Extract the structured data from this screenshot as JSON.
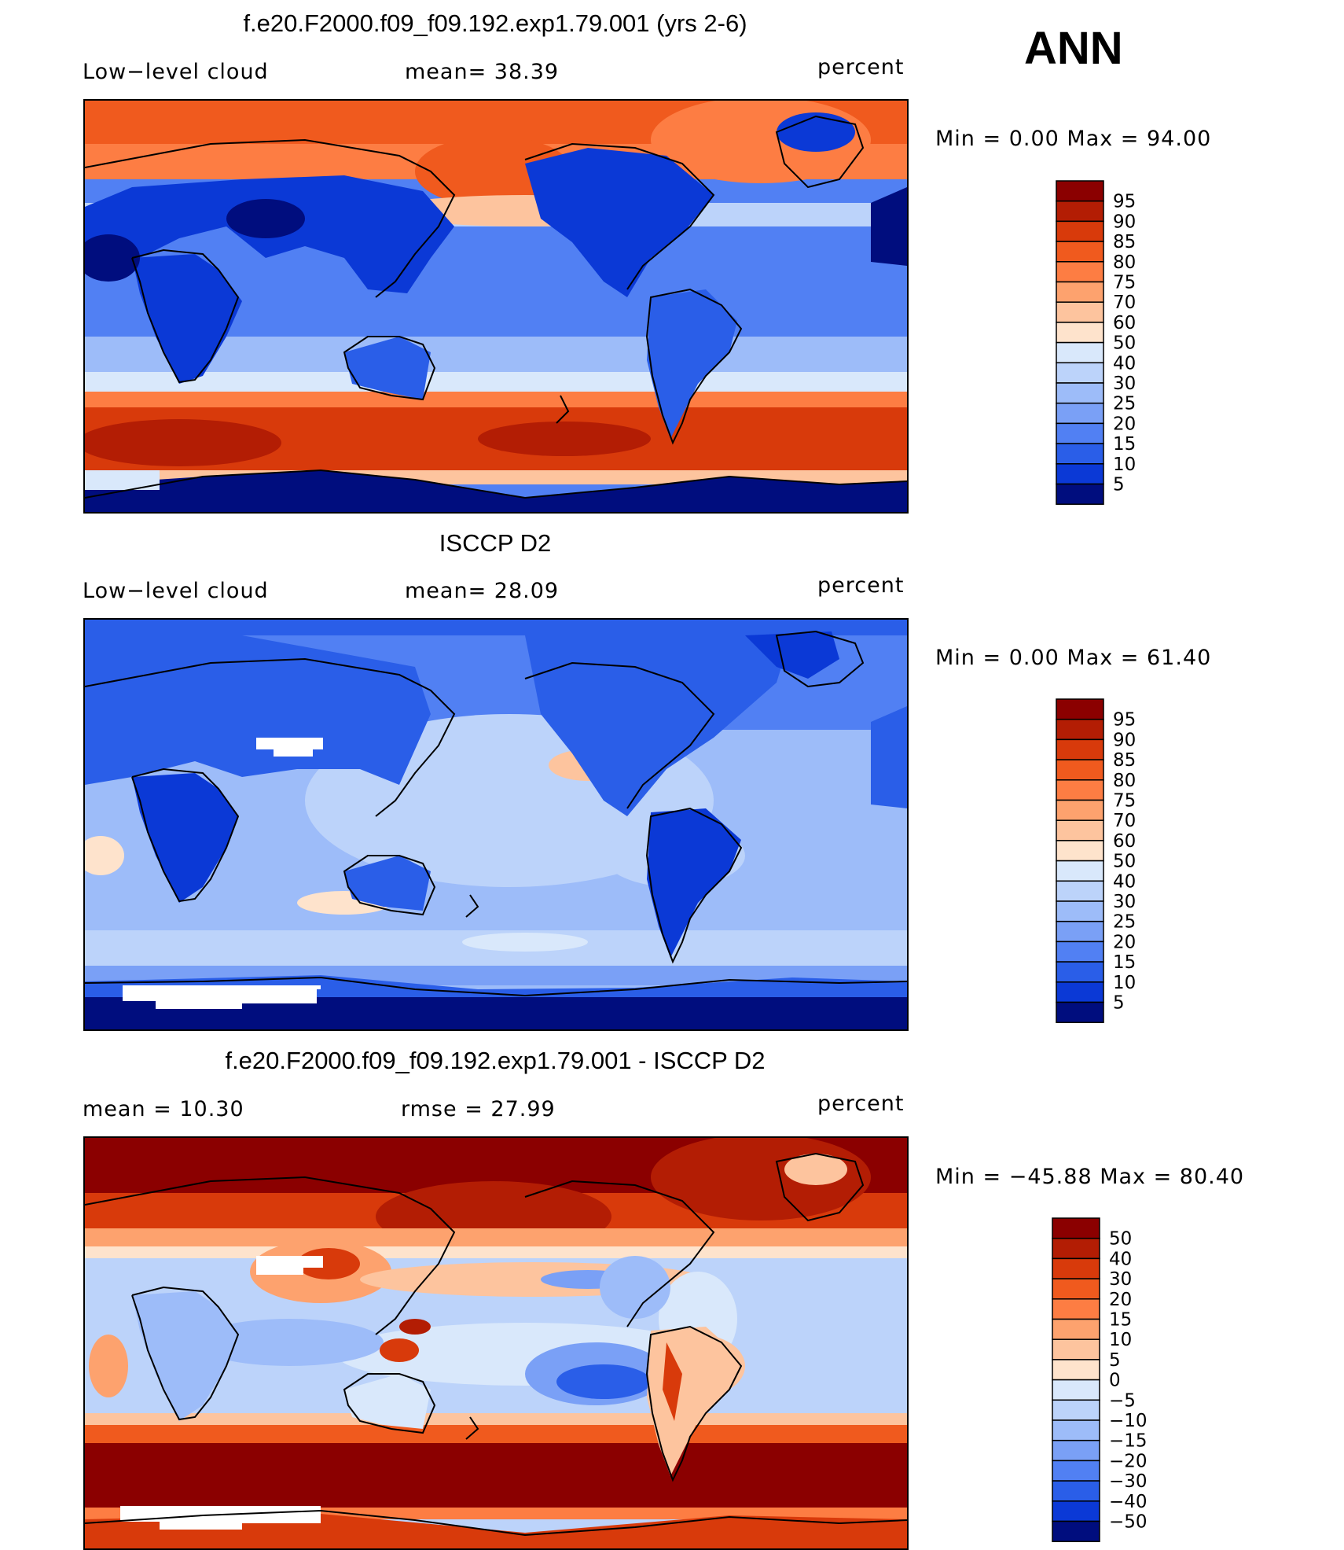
{
  "season": "ANN",
  "panels": [
    {
      "id": "model",
      "title": "f.e20.F2000.f09_f09.192.exp1.79.001 (yrs 2-6)",
      "left_label": "Low−level cloud",
      "middle_label": "mean=   38.39",
      "units": "percent",
      "minmax": "Min =    0.00 Max =   94.00",
      "colorbar": {
        "labels": [
          "95",
          "90",
          "85",
          "80",
          "75",
          "70",
          "60",
          "50",
          "40",
          "30",
          "25",
          "20",
          "15",
          "10",
          "5"
        ],
        "colors": [
          "#8b0000",
          "#b31d04",
          "#d83a0b",
          "#f05a1e",
          "#fd7d43",
          "#fda26e",
          "#fdc49e",
          "#fee3cc",
          "#d9e8fb",
          "#bcd3fa",
          "#9dbcf9",
          "#7aa0f6",
          "#5180f3",
          "#2a5ee8",
          "#0b39d6",
          "#000d7e"
        ]
      }
    },
    {
      "id": "obs",
      "title": "ISCCP D2",
      "left_label": "Low−level cloud",
      "middle_label": "mean=   28.09",
      "units": "percent",
      "minmax": "Min =    0.00 Max =   61.40",
      "colorbar": {
        "labels": [
          "95",
          "90",
          "85",
          "80",
          "75",
          "70",
          "60",
          "50",
          "40",
          "30",
          "25",
          "20",
          "15",
          "10",
          "5"
        ],
        "colors": [
          "#8b0000",
          "#b31d04",
          "#d83a0b",
          "#f05a1e",
          "#fd7d43",
          "#fda26e",
          "#fdc49e",
          "#fee3cc",
          "#d9e8fb",
          "#bcd3fa",
          "#9dbcf9",
          "#7aa0f6",
          "#5180f3",
          "#2a5ee8",
          "#0b39d6",
          "#000d7e"
        ]
      }
    },
    {
      "id": "diff",
      "title": "f.e20.F2000.f09_f09.192.exp1.79.001 - ISCCP D2",
      "left_label": "mean =    10.30",
      "middle_label": "rmse =    27.99",
      "units": "percent",
      "minmax": "Min = −45.88 Max =   80.40",
      "colorbar": {
        "labels": [
          "50",
          "40",
          "30",
          "20",
          "15",
          "10",
          "5",
          "0",
          "−5",
          "−10",
          "−15",
          "−20",
          "−30",
          "−40",
          "−50"
        ],
        "colors": [
          "#8b0000",
          "#b31d04",
          "#d83a0b",
          "#f05a1e",
          "#fd7d43",
          "#fda26e",
          "#fdc49e",
          "#fee3cc",
          "#d9e8fb",
          "#bcd3fa",
          "#9dbcf9",
          "#7aa0f6",
          "#5180f3",
          "#2a5ee8",
          "#0b39d6",
          "#000d7e"
        ]
      }
    }
  ]
}
